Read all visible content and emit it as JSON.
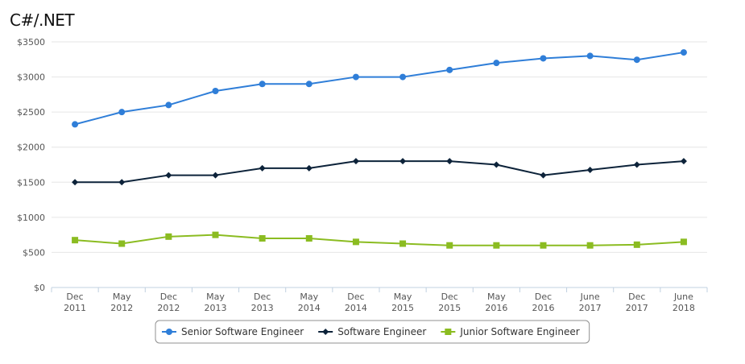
{
  "chart_data": {
    "type": "line",
    "title": "C#/.NET",
    "xlabel": "",
    "ylabel": "",
    "categories": [
      [
        "Dec",
        "2011"
      ],
      [
        "May",
        "2012"
      ],
      [
        "Dec",
        "2012"
      ],
      [
        "May",
        "2013"
      ],
      [
        "Dec",
        "2013"
      ],
      [
        "May",
        "2014"
      ],
      [
        "Dec",
        "2014"
      ],
      [
        "May",
        "2015"
      ],
      [
        "Dec",
        "2015"
      ],
      [
        "May",
        "2016"
      ],
      [
        "Dec",
        "2016"
      ],
      [
        "June",
        "2017"
      ],
      [
        "Dec",
        "2017"
      ],
      [
        "June",
        "2018"
      ]
    ],
    "ylim": [
      0,
      3500
    ],
    "yticks": [
      0,
      500,
      1000,
      1500,
      2000,
      2500,
      3000,
      3500
    ],
    "ytick_labels": [
      "$0",
      "$500",
      "$1000",
      "$1500",
      "$2000",
      "$2500",
      "$3000",
      "$3500"
    ],
    "grid": true,
    "legend_position": "bottom-center",
    "series": [
      {
        "name": "Senior Software Engineer",
        "color": "#2f7ed8",
        "marker": "circle",
        "values": [
          2325,
          2500,
          2600,
          2800,
          2900,
          2900,
          3000,
          3000,
          3100,
          3200,
          3265,
          3300,
          3245,
          3350
        ]
      },
      {
        "name": "Software Engineer",
        "color": "#0d233a",
        "marker": "diamond",
        "values": [
          1500,
          1500,
          1600,
          1600,
          1700,
          1700,
          1800,
          1800,
          1800,
          1750,
          1600,
          1675,
          1750,
          1800
        ]
      },
      {
        "name": "Junior Software Engineer",
        "color": "#8bbc21",
        "marker": "square",
        "values": [
          675,
          625,
          725,
          750,
          700,
          700,
          650,
          625,
          600,
          600,
          600,
          600,
          610,
          650
        ]
      }
    ]
  }
}
